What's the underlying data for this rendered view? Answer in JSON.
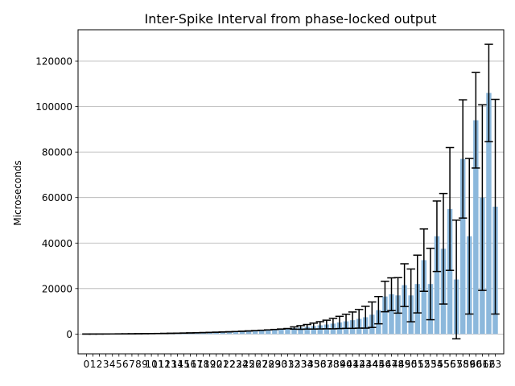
{
  "chart_data": {
    "type": "bar",
    "title": "Inter-Spike Interval from phase-locked output",
    "xlabel": "",
    "ylabel": "Microseconds",
    "x": [
      0,
      1,
      2,
      3,
      4,
      5,
      6,
      7,
      8,
      9,
      10,
      11,
      12,
      13,
      14,
      15,
      16,
      17,
      18,
      19,
      20,
      21,
      22,
      23,
      24,
      25,
      26,
      27,
      28,
      29,
      30,
      31,
      32,
      33,
      34,
      35,
      36,
      37,
      38,
      39,
      40,
      41,
      42,
      43,
      44,
      45,
      46,
      47,
      48,
      49,
      50,
      51,
      52,
      53,
      54,
      55,
      56,
      57,
      58,
      59,
      60,
      61,
      62,
      63
    ],
    "values": [
      0,
      10,
      20,
      30,
      50,
      70,
      90,
      110,
      140,
      170,
      200,
      240,
      280,
      330,
      380,
      440,
      500,
      560,
      640,
      720,
      810,
      900,
      1000,
      1110,
      1230,
      1360,
      1500,
      1660,
      1830,
      2010,
      2200,
      2400,
      2650,
      2900,
      3200,
      3500,
      3850,
      4200,
      4600,
      5100,
      5600,
      6100,
      6700,
      7400,
      8500,
      10500,
      16500,
      17500,
      17000,
      21500,
      17000,
      22000,
      32500,
      22000,
      43000,
      37500,
      55000,
      24000,
      77000,
      43000,
      94000,
      60000,
      106000,
      56000
    ],
    "errors": [
      0,
      0,
      0,
      0,
      0,
      0,
      0,
      0,
      0,
      0,
      0,
      0,
      0,
      0,
      0,
      0,
      0,
      0,
      0,
      0,
      0,
      0,
      0,
      0,
      0,
      0,
      0,
      0,
      0,
      0,
      0,
      0,
      500,
      800,
      1000,
      1300,
      1600,
      1900,
      2300,
      2700,
      3100,
      3600,
      4100,
      4800,
      5600,
      6000,
      6700,
      7200,
      7800,
      9400,
      11600,
      12700,
      13700,
      15700,
      15500,
      24300,
      27000,
      26100,
      26000,
      34200,
      21000,
      40800,
      21400,
      47200
    ],
    "ylim": [
      -8700,
      133800
    ],
    "yticks": [
      0,
      20000,
      40000,
      60000,
      80000,
      100000,
      120000
    ],
    "ytick_labels": [
      "0",
      "20000",
      "40000",
      "60000",
      "80000",
      "100000",
      "120000"
    ],
    "grid": "y",
    "bar_color": "#8cb8dc",
    "error_color": "#000000"
  }
}
